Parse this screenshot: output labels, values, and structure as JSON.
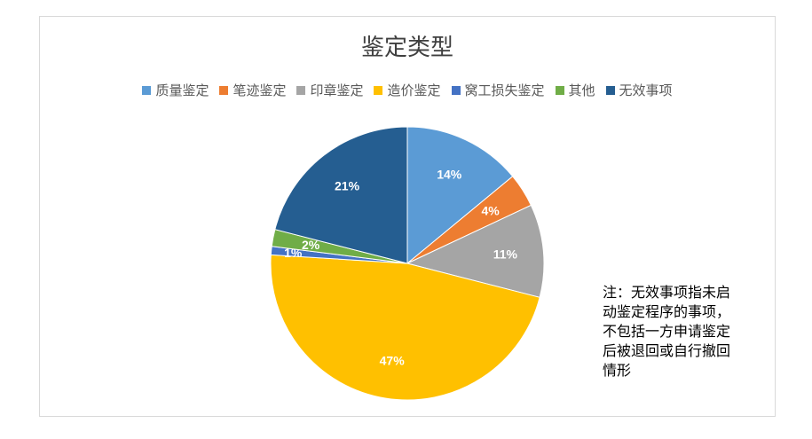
{
  "chart_data": {
    "type": "pie",
    "title": "鉴定类型",
    "legend_position": "top",
    "categories": [
      "质量鉴定",
      "笔迹鉴定",
      "印章鉴定",
      "造价鉴定",
      "窝工损失鉴定",
      "其他",
      "无效事项"
    ],
    "values": [
      14,
      4,
      11,
      47,
      1,
      2,
      21
    ],
    "labels": [
      "14%",
      "4%",
      "11%",
      "47%",
      "1%",
      "2%",
      "21%"
    ],
    "colors": [
      "#5b9bd5",
      "#ed7d31",
      "#a5a5a5",
      "#ffc000",
      "#4472c4",
      "#70ad47",
      "#255e91"
    ],
    "label_color": "#ffffff"
  },
  "note": {
    "text": "注：无效事项指未启动鉴定程序的事项，不包括一方申请鉴定后被退回或自行撤回情形",
    "lines": [
      "注：无效事项指未启",
      "动鉴定程序的事项，",
      "不包括一方申请鉴定",
      "后被退回或自行撤回",
      "情形"
    ]
  }
}
